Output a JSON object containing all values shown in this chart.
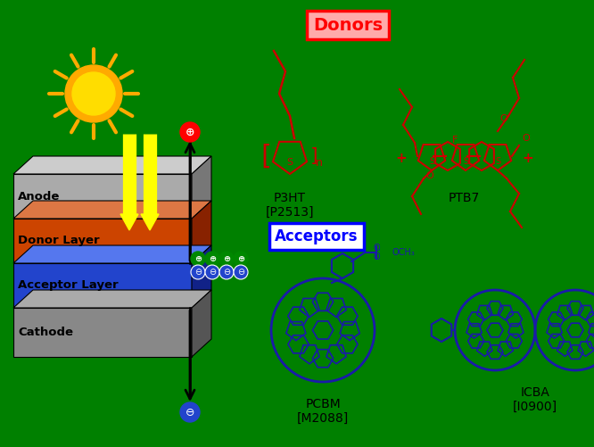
{
  "bg_color": "#008000",
  "donor_color": "#cc0000",
  "acceptor_color": "#1a1aaa",
  "black": "#000000",
  "white": "#ffffff",
  "yellow": "#ffee00",
  "orange": "#ff8800",
  "sun_color": "#ffaa00",
  "sun_inner": "#ffdd00",
  "layer_anode_color": "#aaaaaa",
  "layer_donor_color": "#cc4400",
  "layer_acceptor_color": "#2244cc",
  "layer_cathode_color": "#888888",
  "layer_anode_dark": "#777777",
  "layer_donor_dark": "#882200",
  "layer_acceptor_dark": "#112288",
  "layer_cathode_dark": "#555555",
  "layer_anode_light": "#cccccc",
  "layer_donor_light": "#dd7744",
  "layer_acceptor_light": "#5577ee",
  "layer_cathode_light": "#aaaaaa",
  "donors_label": "Donors",
  "acceptors_label": "Acceptors",
  "p3ht_label": "P3HT\n[P2513]",
  "ptb7_label": "PTB7",
  "pcbm_label": "PCBM\n[M2088]",
  "icba_label": "ICBA\n[I0900]",
  "anode_label": "Anode",
  "donor_layer_label": "Donor Layer",
  "acceptor_layer_label": "Acceptor Layer",
  "cathode_label": "Cathode"
}
